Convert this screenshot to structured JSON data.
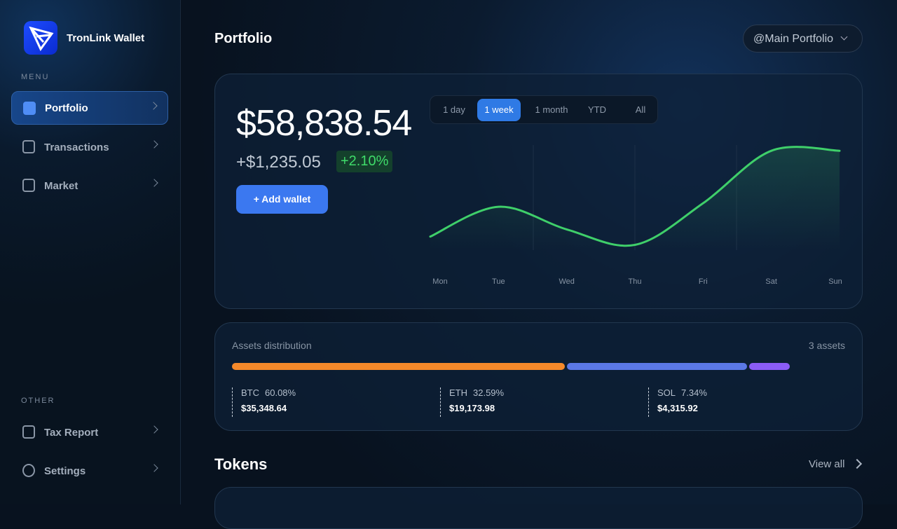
{
  "sidebar": {
    "brand": "TronLink Wallet",
    "menu_label": "MENU",
    "menu": [
      "Portfolio",
      "Transactions",
      "Market"
    ],
    "other_label": "OTHER",
    "other": [
      "Tax Report",
      "Settings"
    ]
  },
  "header": {
    "title": "Portfolio",
    "selector": "@Main Portfolio"
  },
  "summary": {
    "balance": "$58,838.54",
    "change": "+$1,235.05",
    "change_pct": "+2.10%",
    "button": "+ Add wallet",
    "ranges": [
      "1 day",
      "1 week",
      "1 month",
      "YTD",
      "All"
    ],
    "active_range": 1
  },
  "chart": {
    "type": "line",
    "categories": [
      "Mon",
      "Tue",
      "Wed",
      "Thu",
      "Fri",
      "Sat",
      "Sun"
    ],
    "values": [
      22,
      47,
      28,
      15,
      50,
      94,
      94
    ],
    "ylim": [
      0,
      100
    ],
    "color": "#3fcf6a"
  },
  "assets": {
    "title": "Assets distribution",
    "count": "3 assets",
    "items": [
      {
        "symbol": "BTC",
        "percent": {
          "value": 60.08,
          "label": "60.08%"
        },
        "amount": "$35,348.64",
        "color": "#f5892a"
      },
      {
        "symbol": "ETH",
        "percent": {
          "value": 32.59,
          "label": "32.59%"
        },
        "amount": "$19,173.98",
        "color": "#5b78e6"
      },
      {
        "symbol": "SOL",
        "percent": {
          "value": 7.34,
          "label": "7.34%"
        },
        "amount": "$4,315.92",
        "color": "#8b5cf6"
      }
    ]
  },
  "tokens": {
    "title": "Tokens",
    "link": "View all"
  }
}
